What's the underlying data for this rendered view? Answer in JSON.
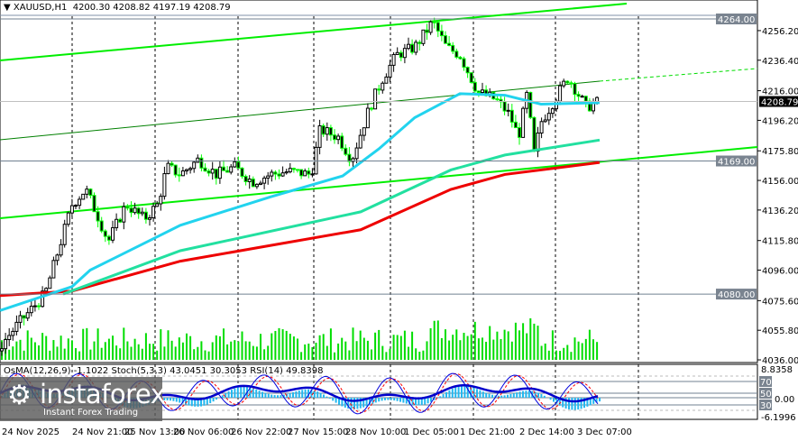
{
  "header": {
    "symbol": "XAUUSD,H1",
    "ohlc": "4200.30 4208.82 4197.19 4208.79",
    "menu_icon": "triangle-down-icon"
  },
  "price_axis": {
    "ticks": [
      "4256.20",
      "4236.40",
      "4216.00",
      "4196.20",
      "4175.80",
      "4156.00",
      "4136.20",
      "4115.80",
      "4096.00",
      "4075.60",
      "4055.80",
      "4036.00"
    ],
    "tick_values": [
      4256.2,
      4236.4,
      4216,
      4196.2,
      4175.8,
      4156,
      4136.2,
      4115.8,
      4096,
      4075.6,
      4055.8,
      4036
    ],
    "levels": [
      {
        "label": "4264.00",
        "value": 4264
      },
      {
        "label": "4169.00",
        "value": 4169
      },
      {
        "label": "4080.00",
        "value": 4080
      }
    ],
    "current": {
      "label": "4208.79",
      "value": 4208.79
    }
  },
  "indicator": {
    "label": "OsMA(12,26,9) -1.1022  Stoch(5,3,3) 43.0451 30.3053  RSI(14) 49.8398",
    "max": "8.8358",
    "min": "-6.1996",
    "levels": [
      "70",
      "50",
      "30"
    ],
    "zero": "0.00"
  },
  "time_axis": [
    "24 Nov 2025",
    "24 Nov 21:00",
    "25 Nov 13:00",
    "26 Nov 06:00",
    "26 Nov 22:00",
    "27 Nov 15:00",
    "28 Nov 10:00",
    "1 Dec 05:00",
    "1 Dec 21:00",
    "2 Dec 14:00",
    "3 Dec 07:00"
  ],
  "colors": {
    "bull": "#000000",
    "bear": "#00ff00",
    "channel": "#00ee00",
    "ma_fast": "#22d3ee",
    "ma_mid": "#22e0a0",
    "ma_slow": "#ee0000",
    "osma": "#22b8f0",
    "stoch": "#0000dd",
    "signal": "#ff0000",
    "rsi": "#0000cc"
  },
  "price_path": [
    [
      0,
      4045
    ],
    [
      20,
      4060
    ],
    [
      50,
      4080
    ],
    [
      65,
      4110
    ],
    [
      80,
      4140
    ],
    [
      95,
      4150
    ],
    [
      110,
      4130
    ],
    [
      120,
      4115
    ],
    [
      140,
      4140
    ],
    [
      160,
      4130
    ],
    [
      175,
      4140
    ],
    [
      185,
      4165
    ],
    [
      200,
      4160
    ],
    [
      220,
      4170
    ],
    [
      240,
      4160
    ],
    [
      260,
      4165
    ],
    [
      280,
      4155
    ],
    [
      300,
      4160
    ],
    [
      320,
      4162
    ],
    [
      345,
      4160
    ],
    [
      355,
      4190
    ],
    [
      375,
      4185
    ],
    [
      390,
      4170
    ],
    [
      410,
      4205
    ],
    [
      425,
      4225
    ],
    [
      440,
      4240
    ],
    [
      460,
      4245
    ],
    [
      480,
      4262
    ],
    [
      495,
      4245
    ],
    [
      510,
      4240
    ],
    [
      530,
      4215
    ],
    [
      550,
      4210
    ],
    [
      565,
      4200
    ],
    [
      575,
      4185
    ],
    [
      585,
      4215
    ],
    [
      592,
      4172
    ],
    [
      600,
      4195
    ],
    [
      615,
      4210
    ],
    [
      630,
      4225
    ],
    [
      640,
      4215
    ],
    [
      650,
      4205
    ],
    [
      665,
      4208.79
    ]
  ],
  "ma_fast": [
    [
      0,
      4069
    ],
    [
      80,
      4085
    ],
    [
      100,
      4096
    ],
    [
      200,
      4126
    ],
    [
      300,
      4145
    ],
    [
      380,
      4159
    ],
    [
      420,
      4177
    ],
    [
      460,
      4198
    ],
    [
      510,
      4214
    ],
    [
      560,
      4213
    ],
    [
      600,
      4207
    ],
    [
      665,
      4208
    ]
  ],
  "ma_mid": [
    [
      70,
      4080
    ],
    [
      200,
      4109
    ],
    [
      400,
      4135
    ],
    [
      500,
      4163
    ],
    [
      560,
      4173
    ],
    [
      665,
      4183
    ]
  ],
  "ma_slow": [
    [
      0,
      4079
    ],
    [
      80,
      4082
    ],
    [
      200,
      4102
    ],
    [
      400,
      4123
    ],
    [
      500,
      4150
    ],
    [
      560,
      4160
    ],
    [
      665,
      4168
    ]
  ],
  "watermark": {
    "brand": "instaforex",
    "tagline": "Instant Forex Trading"
  }
}
